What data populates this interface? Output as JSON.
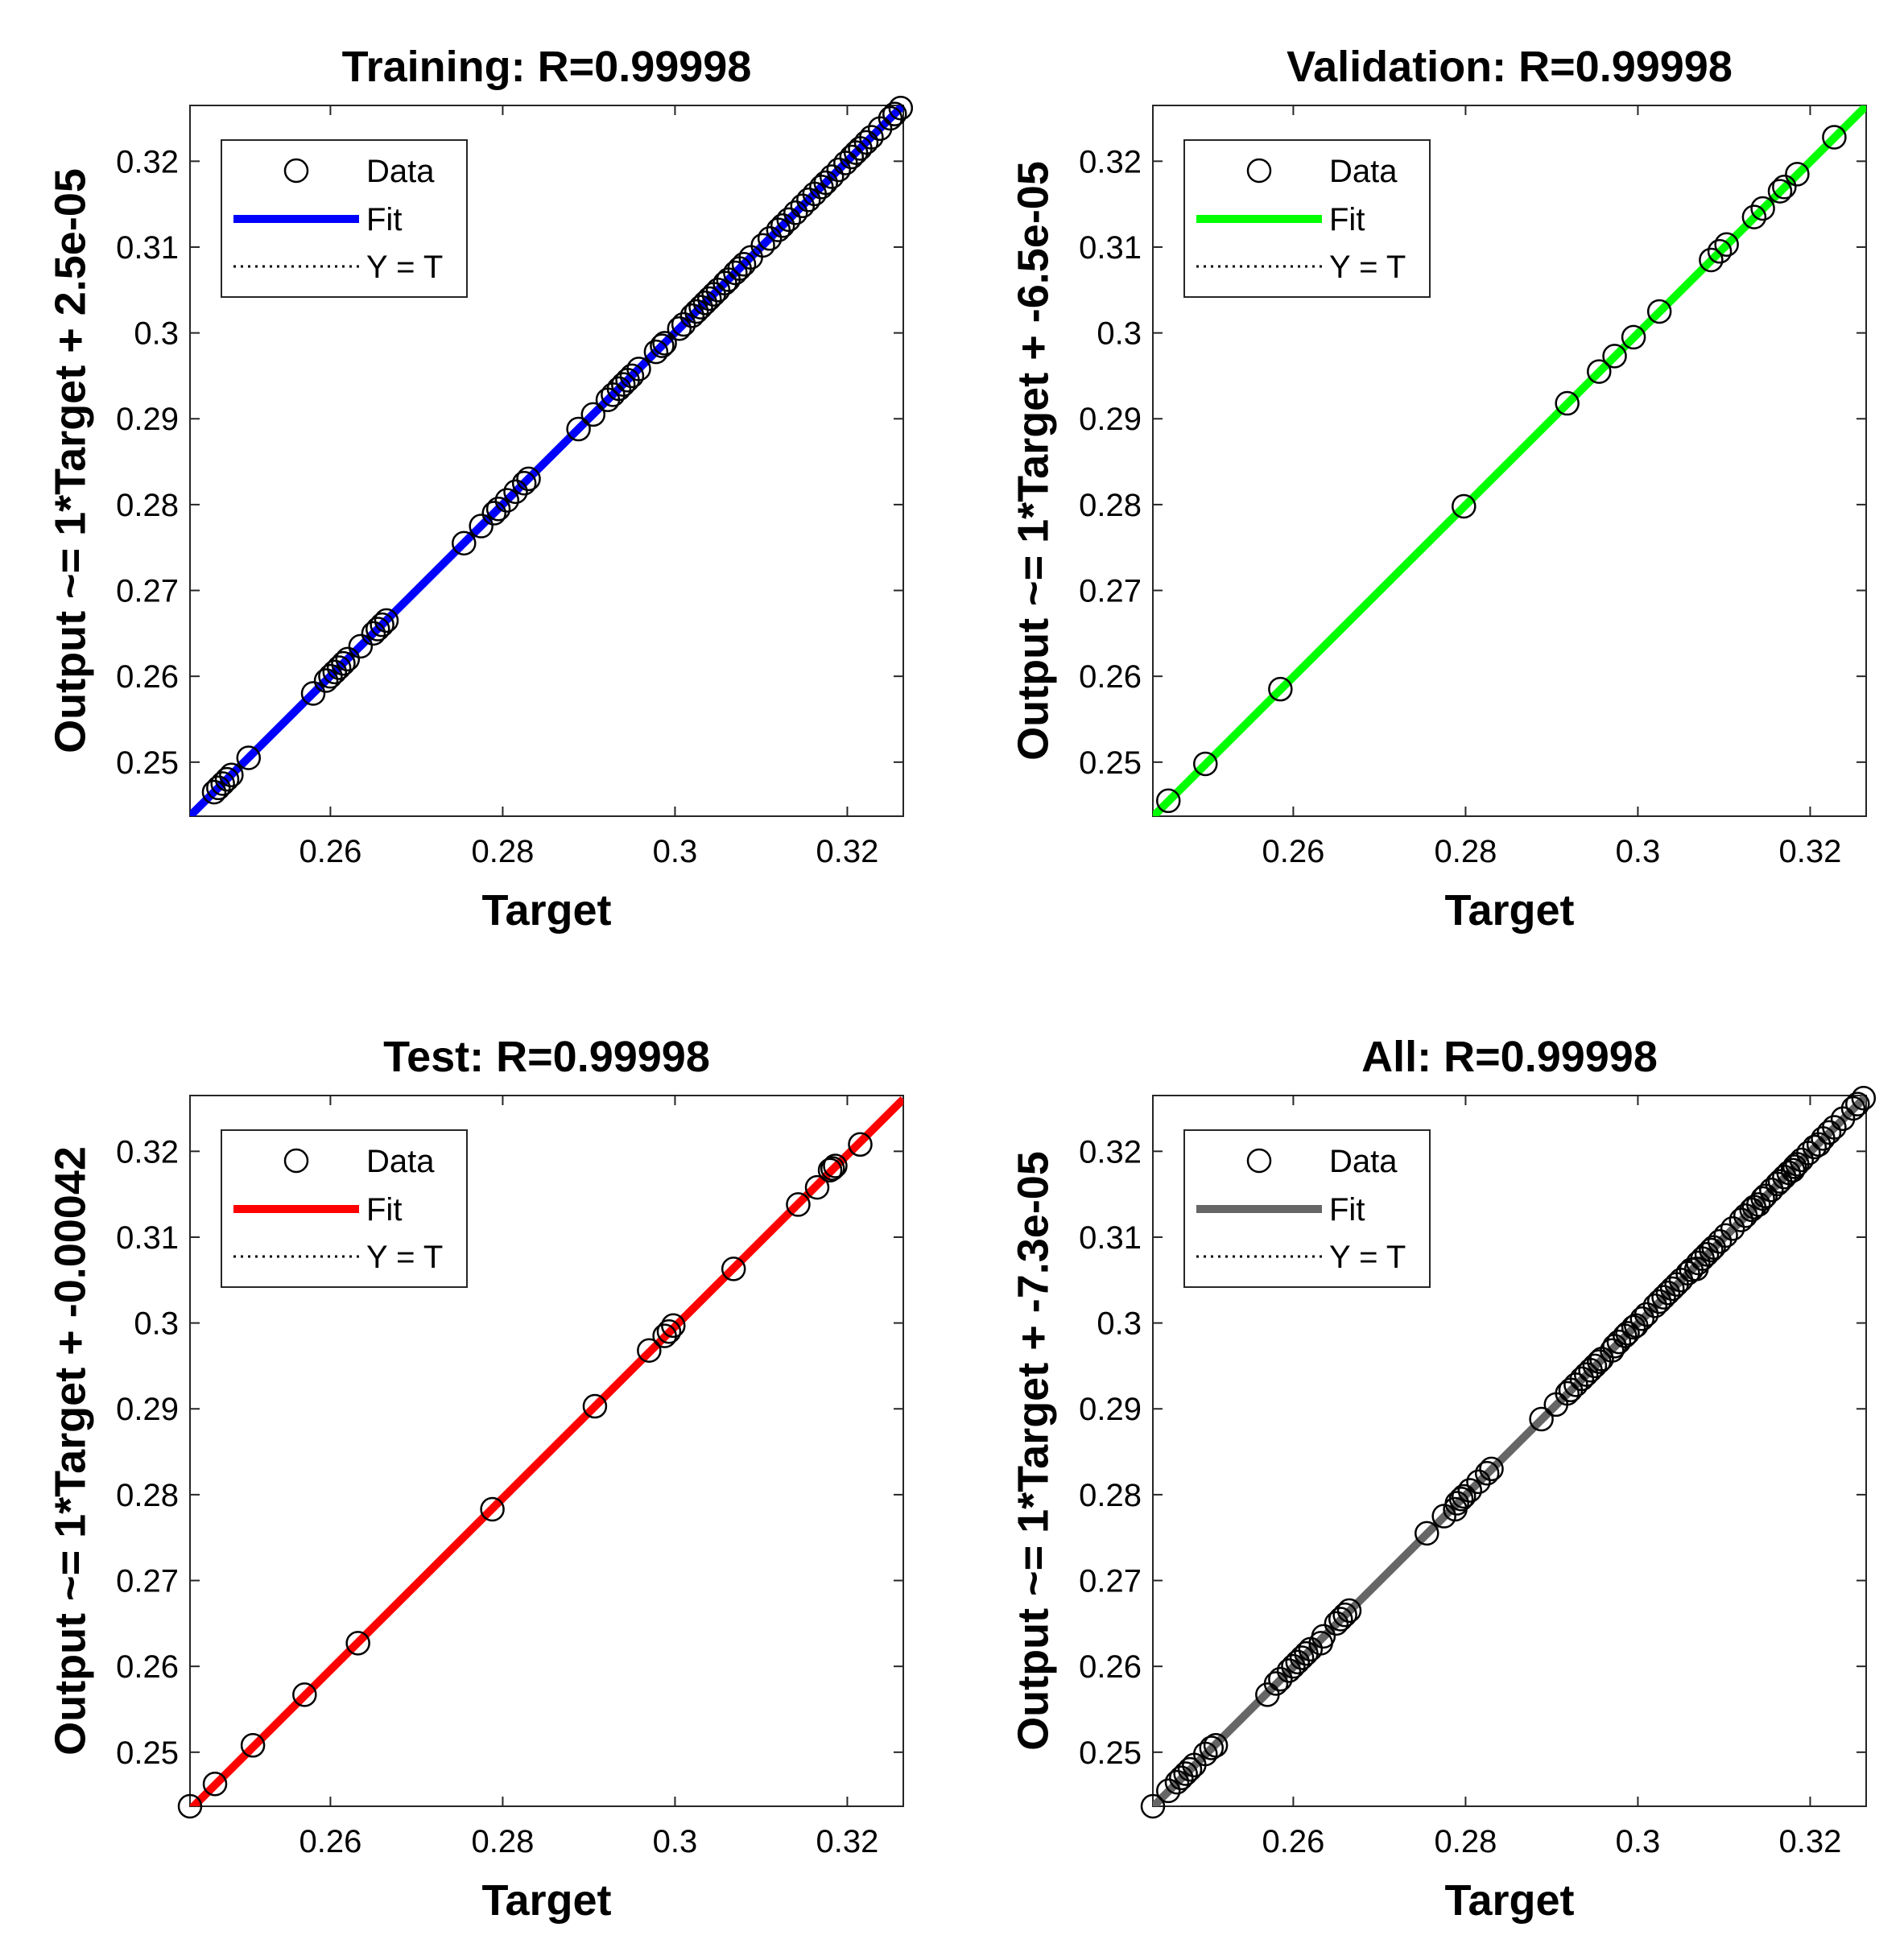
{
  "chart_data": [
    {
      "type": "scatter",
      "title": "Training: R=0.99998",
      "xlabel": "Target",
      "ylabel": "Output ~= 1*Target + 2.5e-05",
      "xlim": [
        0.2437,
        0.3265
      ],
      "ylim": [
        0.2437,
        0.3265
      ],
      "xticks": [
        "0.26",
        "0.28",
        "0.3",
        "0.32"
      ],
      "yticks": [
        "0.25",
        "0.26",
        "0.27",
        "0.28",
        "0.29",
        "0.3",
        "0.31",
        "0.32"
      ],
      "grid": false,
      "legend_position": "top-left",
      "legend": [
        "Data",
        "Fit",
        "Y = T"
      ],
      "fit_color": "#0000ff",
      "fit": {
        "slope": 1,
        "intercept": 2.5e-05
      },
      "series": [
        {
          "name": "Data",
          "x": [
            0.2465,
            0.247,
            0.2475,
            0.248,
            0.2485,
            0.2505,
            0.258,
            0.2595,
            0.26,
            0.2605,
            0.261,
            0.2615,
            0.262,
            0.2635,
            0.265,
            0.2655,
            0.266,
            0.2665,
            0.2755,
            0.2775,
            0.279,
            0.2795,
            0.2805,
            0.2815,
            0.2825,
            0.283,
            0.2888,
            0.2905,
            0.2922,
            0.2928,
            0.2935,
            0.294,
            0.2945,
            0.295,
            0.2958,
            0.2978,
            0.2985,
            0.2988,
            0.3005,
            0.301,
            0.302,
            0.3025,
            0.303,
            0.3035,
            0.304,
            0.3045,
            0.305,
            0.3058,
            0.3062,
            0.307,
            0.3075,
            0.308,
            0.3088,
            0.3102,
            0.311,
            0.312,
            0.3125,
            0.3132,
            0.314,
            0.3148,
            0.3155,
            0.3162,
            0.317,
            0.3175,
            0.3182,
            0.319,
            0.3198,
            0.3205,
            0.321,
            0.3215,
            0.3222,
            0.3228,
            0.3238,
            0.325,
            0.3255,
            0.3262
          ],
          "y": [
            0.2465,
            0.247,
            0.2475,
            0.248,
            0.2485,
            0.2505,
            0.258,
            0.2595,
            0.26,
            0.2605,
            0.261,
            0.2615,
            0.262,
            0.2635,
            0.265,
            0.2655,
            0.266,
            0.2665,
            0.2755,
            0.2775,
            0.279,
            0.2795,
            0.2805,
            0.2815,
            0.2825,
            0.283,
            0.2888,
            0.2905,
            0.2922,
            0.2928,
            0.2935,
            0.294,
            0.2945,
            0.295,
            0.2958,
            0.2978,
            0.2985,
            0.2988,
            0.3005,
            0.301,
            0.302,
            0.3025,
            0.303,
            0.3035,
            0.304,
            0.3045,
            0.305,
            0.3058,
            0.3062,
            0.307,
            0.3075,
            0.308,
            0.3088,
            0.3102,
            0.311,
            0.312,
            0.3125,
            0.3132,
            0.314,
            0.3148,
            0.3155,
            0.3162,
            0.317,
            0.3175,
            0.3182,
            0.319,
            0.3198,
            0.3205,
            0.321,
            0.3215,
            0.3222,
            0.3228,
            0.3238,
            0.325,
            0.3255,
            0.3262
          ]
        }
      ]
    },
    {
      "type": "scatter",
      "title": "Validation: R=0.99998",
      "xlabel": "Target",
      "ylabel": "Output ~= 1*Target + -6.5e-05",
      "xlim": [
        0.2437,
        0.3265
      ],
      "ylim": [
        0.2437,
        0.3265
      ],
      "xticks": [
        "0.26",
        "0.28",
        "0.3",
        "0.32"
      ],
      "yticks": [
        "0.25",
        "0.26",
        "0.27",
        "0.28",
        "0.29",
        "0.3",
        "0.31",
        "0.32"
      ],
      "grid": false,
      "legend_position": "top-left",
      "legend": [
        "Data",
        "Fit",
        "Y = T"
      ],
      "fit_color": "#00ff00",
      "fit": {
        "slope": 1,
        "intercept": -6.5e-05
      },
      "series": [
        {
          "name": "Data",
          "x": [
            0.2455,
            0.2498,
            0.2585,
            0.2798,
            0.2918,
            0.2955,
            0.2973,
            0.2995,
            0.3025,
            0.3085,
            0.3095,
            0.3103,
            0.3135,
            0.3145,
            0.3165,
            0.317,
            0.3185,
            0.3228
          ],
          "y": [
            0.2455,
            0.2498,
            0.2585,
            0.2798,
            0.2918,
            0.2955,
            0.2973,
            0.2995,
            0.3025,
            0.3085,
            0.3095,
            0.3103,
            0.3135,
            0.3145,
            0.3165,
            0.317,
            0.3185,
            0.3228
          ]
        }
      ]
    },
    {
      "type": "scatter",
      "title": "Test: R=0.99998",
      "xlabel": "Target",
      "ylabel": "Output ~= 1*Target + -0.00042",
      "xlim": [
        0.2437,
        0.3265
      ],
      "ylim": [
        0.2437,
        0.3265
      ],
      "xticks": [
        "0.26",
        "0.28",
        "0.3",
        "0.32"
      ],
      "yticks": [
        "0.25",
        "0.26",
        "0.27",
        "0.28",
        "0.29",
        "0.3",
        "0.31",
        "0.32"
      ],
      "grid": false,
      "legend_position": "top-left",
      "legend": [
        "Data",
        "Fit",
        "Y = T"
      ],
      "fit_color": "#ff0000",
      "fit": {
        "slope": 1,
        "intercept": -0.00042
      },
      "series": [
        {
          "name": "Data",
          "x": [
            0.2437,
            0.2466,
            0.251,
            0.257,
            0.2632,
            0.2788,
            0.2907,
            0.297,
            0.2988,
            0.2993,
            0.2998,
            0.3068,
            0.3143,
            0.3165,
            0.318,
            0.3183,
            0.3186,
            0.3215
          ],
          "y": [
            0.2437,
            0.2463,
            0.2508,
            0.2567,
            0.2627,
            0.2783,
            0.2903,
            0.2968,
            0.2985,
            0.299,
            0.2997,
            0.3063,
            0.3138,
            0.3158,
            0.3178,
            0.318,
            0.3183,
            0.3208
          ]
        }
      ]
    },
    {
      "type": "scatter",
      "title": "All: R=0.99998",
      "xlabel": "Target",
      "ylabel": "Output ~= 1*Target + -7.3e-05",
      "xlim": [
        0.2437,
        0.3265
      ],
      "ylim": [
        0.2437,
        0.3265
      ],
      "xticks": [
        "0.26",
        "0.28",
        "0.3",
        "0.32"
      ],
      "yticks": [
        "0.25",
        "0.26",
        "0.27",
        "0.28",
        "0.29",
        "0.3",
        "0.31",
        "0.32"
      ],
      "grid": false,
      "legend_position": "top-left",
      "legend": [
        "Data",
        "Fit",
        "Y = T"
      ],
      "fit_color": "#666666",
      "fit": {
        "slope": 1,
        "intercept": -7.3e-05
      },
      "series": [
        {
          "name": "Data",
          "x": [
            0.2437,
            0.2455,
            0.2465,
            0.247,
            0.2475,
            0.248,
            0.2485,
            0.2498,
            0.2505,
            0.251,
            0.257,
            0.258,
            0.2585,
            0.2595,
            0.26,
            0.2605,
            0.261,
            0.2615,
            0.262,
            0.2632,
            0.2635,
            0.265,
            0.2655,
            0.266,
            0.2665,
            0.2755,
            0.2775,
            0.2788,
            0.279,
            0.2795,
            0.2798,
            0.2805,
            0.2815,
            0.2825,
            0.283,
            0.2888,
            0.2905,
            0.2918,
            0.2922,
            0.2928,
            0.2935,
            0.294,
            0.2945,
            0.295,
            0.2955,
            0.2958,
            0.297,
            0.2973,
            0.2978,
            0.2985,
            0.2988,
            0.2995,
            0.2998,
            0.3005,
            0.301,
            0.302,
            0.3025,
            0.303,
            0.3035,
            0.304,
            0.3045,
            0.305,
            0.3058,
            0.3062,
            0.3068,
            0.307,
            0.3075,
            0.308,
            0.3085,
            0.3088,
            0.3095,
            0.3102,
            0.311,
            0.312,
            0.3125,
            0.3132,
            0.3135,
            0.314,
            0.3145,
            0.3148,
            0.3155,
            0.3162,
            0.3165,
            0.317,
            0.3175,
            0.318,
            0.3182,
            0.3185,
            0.319,
            0.3198,
            0.3205,
            0.321,
            0.3215,
            0.3222,
            0.3228,
            0.3238,
            0.325,
            0.3255,
            0.3262
          ],
          "y": [
            0.2437,
            0.2455,
            0.2465,
            0.247,
            0.2475,
            0.248,
            0.2485,
            0.2498,
            0.2505,
            0.2508,
            0.2567,
            0.258,
            0.2585,
            0.2595,
            0.26,
            0.2605,
            0.261,
            0.2615,
            0.262,
            0.2627,
            0.2635,
            0.265,
            0.2655,
            0.266,
            0.2665,
            0.2755,
            0.2775,
            0.2783,
            0.279,
            0.2795,
            0.2798,
            0.2805,
            0.2815,
            0.2825,
            0.283,
            0.2888,
            0.2905,
            0.2918,
            0.2922,
            0.2928,
            0.2935,
            0.294,
            0.2945,
            0.295,
            0.2955,
            0.2958,
            0.2968,
            0.2973,
            0.2978,
            0.2985,
            0.2988,
            0.2995,
            0.2997,
            0.3005,
            0.301,
            0.302,
            0.3025,
            0.303,
            0.3035,
            0.304,
            0.3045,
            0.305,
            0.3058,
            0.3062,
            0.3063,
            0.307,
            0.3075,
            0.308,
            0.3085,
            0.3088,
            0.3095,
            0.3102,
            0.311,
            0.312,
            0.3125,
            0.3132,
            0.3135,
            0.3138,
            0.3145,
            0.3148,
            0.3155,
            0.3162,
            0.3165,
            0.317,
            0.3175,
            0.3178,
            0.3182,
            0.3185,
            0.319,
            0.3198,
            0.3205,
            0.3208,
            0.3215,
            0.3222,
            0.3228,
            0.3238,
            0.325,
            0.3255,
            0.3262
          ]
        }
      ]
    }
  ]
}
